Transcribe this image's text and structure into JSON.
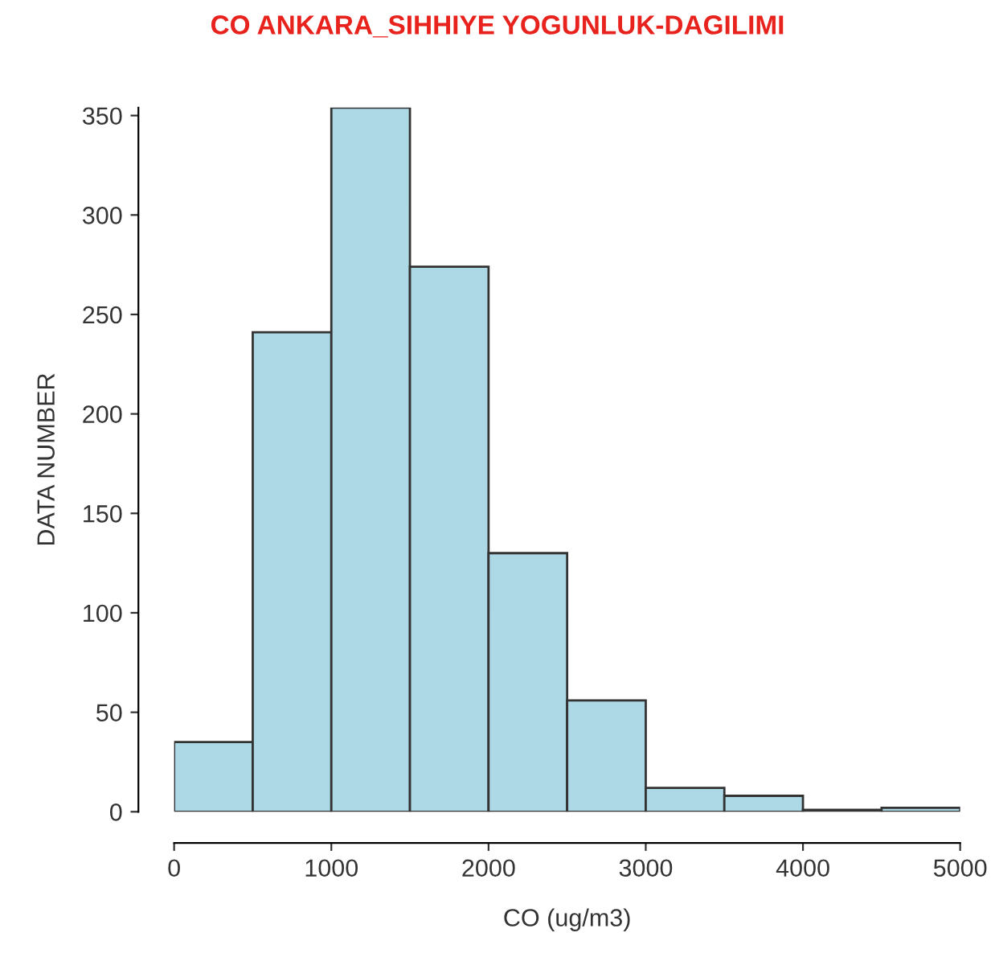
{
  "chart_data": {
    "type": "histogram",
    "title": "CO ANKARA_SIHHIYE YOGUNLUK-DAGILIMI",
    "xlabel": "CO (ug/m3)",
    "ylabel": "DATA NUMBER",
    "bins": [
      0,
      500,
      1000,
      1500,
      2000,
      2500,
      3000,
      3500,
      4000,
      4500,
      5000
    ],
    "values": [
      35,
      241,
      354,
      274,
      130,
      56,
      12,
      8,
      1,
      2
    ],
    "color": "#add8e6",
    "xlim": [
      0,
      5000
    ],
    "ylim": [
      0,
      354
    ],
    "xticks": [
      0,
      1000,
      2000,
      3000,
      4000,
      5000
    ],
    "yticks": [
      0,
      50,
      100,
      150,
      200,
      250,
      300,
      350
    ],
    "grid": false
  }
}
